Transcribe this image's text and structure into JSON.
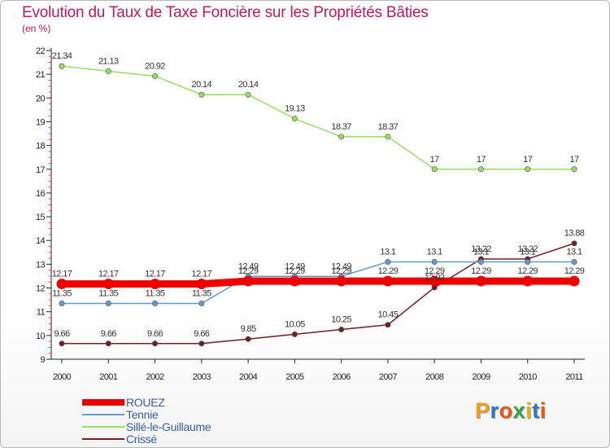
{
  "title": "Evolution du Taux de Taxe Foncière sur les Propriétés Bâties",
  "subtitle": "(en %)",
  "logo": {
    "letters": [
      "P",
      "r",
      "o",
      "x",
      "i",
      "t",
      "i"
    ],
    "colors": [
      "#f0a020",
      "#2a7cc7",
      "#e05a1a",
      "#3aa24a",
      "#e0b020",
      "#2a7cc7",
      "#e05a1a"
    ]
  },
  "chart_data": {
    "type": "line",
    "title": "Evolution du Taux de Taxe Foncière sur les Propriétés Bâties",
    "ylabel": "(en %)",
    "x": [
      2000,
      2001,
      2002,
      2003,
      2004,
      2005,
      2006,
      2007,
      2008,
      2009,
      2010,
      2011
    ],
    "ylim": [
      9,
      22
    ],
    "yticks": [
      9,
      10,
      11,
      12,
      13,
      14,
      15,
      16,
      17,
      18,
      19,
      20,
      21,
      22
    ],
    "grid": false,
    "legend_position": "bottom-left",
    "series": [
      {
        "name": "ROUEZ",
        "color": "#ee0000",
        "values": [
          12.17,
          12.17,
          12.17,
          12.17,
          12.29,
          12.29,
          12.29,
          12.29,
          12.29,
          12.29,
          12.29,
          12.29
        ]
      },
      {
        "name": "Tennie",
        "color": "#6699cc",
        "values": [
          11.35,
          11.35,
          11.35,
          11.35,
          12.49,
          12.49,
          12.49,
          13.1,
          13.1,
          13.1,
          13.1,
          13.1
        ]
      },
      {
        "name": "Sillé-le-Guillaume",
        "color": "#99dd66",
        "values": [
          21.34,
          21.13,
          20.92,
          20.14,
          20.14,
          19.13,
          18.37,
          18.37,
          17,
          17,
          17,
          17
        ]
      },
      {
        "name": "Crissé",
        "color": "#6b2228",
        "values": [
          9.66,
          9.66,
          9.66,
          9.66,
          9.85,
          10.05,
          10.25,
          10.45,
          12.02,
          13.22,
          13.22,
          13.88
        ]
      }
    ]
  }
}
